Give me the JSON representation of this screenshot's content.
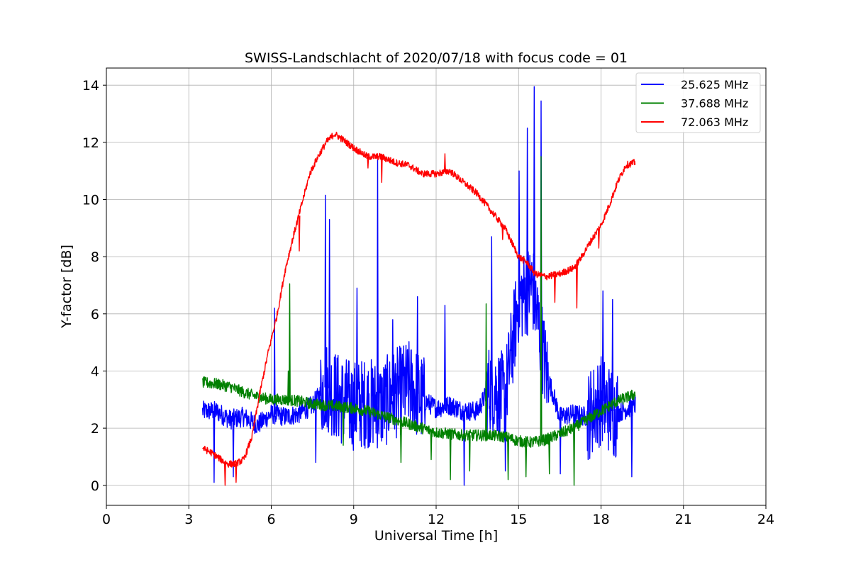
{
  "chart_data": {
    "type": "line",
    "title": "SWISS-Landschlacht of 2020/07/18 with focus code = 01",
    "xlabel": "Universal Time [h]",
    "ylabel": "Y-factor [dB]",
    "xlim": [
      0,
      24
    ],
    "ylim": [
      -0.7,
      14.6
    ],
    "xticks": [
      0,
      3,
      6,
      9,
      12,
      15,
      18,
      21,
      24
    ],
    "yticks": [
      0,
      2,
      4,
      6,
      8,
      10,
      12,
      14
    ],
    "grid": true,
    "legend_position": "top-right",
    "series": [
      {
        "name": "25.625 MHz",
        "color": "#0000ff",
        "x": [
          3.5,
          4.0,
          4.5,
          5.0,
          5.5,
          6.0,
          6.5,
          7.0,
          7.5,
          8.0,
          8.5,
          9.0,
          9.5,
          10.0,
          10.5,
          11.0,
          11.5,
          12.0,
          12.5,
          13.0,
          13.5,
          14.0,
          14.5,
          15.0,
          15.5,
          16.0,
          16.5,
          17.0,
          17.5,
          18.0,
          18.5,
          19.0,
          19.25
        ],
        "y": [
          2.6,
          2.6,
          2.3,
          2.4,
          2.1,
          2.5,
          2.4,
          2.5,
          2.8,
          3.5,
          3.0,
          2.8,
          2.9,
          2.8,
          3.2,
          3.5,
          3.0,
          2.7,
          2.8,
          2.6,
          2.6,
          3.5,
          3.0,
          6.5,
          7.0,
          4.0,
          2.4,
          2.5,
          2.4,
          3.0,
          2.5,
          2.7,
          2.8
        ],
        "spikes": [
          [
            3.9,
            0.1
          ],
          [
            4.6,
            0.3
          ],
          [
            6.1,
            6.2
          ],
          [
            7.6,
            0.8
          ],
          [
            7.95,
            10.15
          ],
          [
            8.1,
            9.3
          ],
          [
            9.1,
            6.9
          ],
          [
            9.85,
            11.4
          ],
          [
            10.4,
            5.8
          ],
          [
            11.3,
            6.6
          ],
          [
            12.3,
            6.3
          ],
          [
            13.0,
            0.0
          ],
          [
            14.0,
            8.7
          ],
          [
            14.5,
            0.5
          ],
          [
            15.0,
            11.0
          ],
          [
            15.3,
            12.5
          ],
          [
            15.55,
            13.95
          ],
          [
            15.8,
            13.45
          ],
          [
            16.5,
            0.4
          ],
          [
            17.0,
            0.8
          ],
          [
            18.05,
            6.8
          ],
          [
            18.4,
            6.5
          ],
          [
            19.1,
            0.3
          ]
        ]
      },
      {
        "name": "37.688 MHz",
        "color": "#008000",
        "x": [
          3.5,
          4.0,
          4.5,
          5.0,
          5.5,
          6.0,
          6.5,
          7.0,
          7.5,
          8.0,
          8.5,
          9.0,
          9.5,
          10.0,
          10.5,
          11.0,
          11.5,
          12.0,
          12.5,
          13.0,
          13.5,
          14.0,
          14.5,
          15.0,
          15.5,
          16.0,
          16.5,
          17.0,
          17.5,
          18.0,
          18.5,
          19.0,
          19.25
        ],
        "y": [
          3.6,
          3.55,
          3.45,
          3.25,
          3.1,
          3.0,
          3.0,
          2.95,
          2.85,
          2.8,
          2.75,
          2.7,
          2.6,
          2.45,
          2.3,
          2.15,
          2.0,
          1.85,
          1.8,
          1.75,
          1.75,
          1.75,
          1.7,
          1.55,
          1.5,
          1.6,
          1.8,
          2.0,
          2.3,
          2.6,
          2.9,
          3.1,
          3.2
        ],
        "spikes": [
          [
            6.65,
            7.05
          ],
          [
            6.6,
            4.0
          ],
          [
            8.6,
            1.4
          ],
          [
            10.7,
            0.8
          ],
          [
            11.8,
            0.9
          ],
          [
            12.5,
            0.2
          ],
          [
            13.2,
            0.5
          ],
          [
            13.8,
            6.35
          ],
          [
            14.6,
            0.2
          ],
          [
            15.25,
            0.3
          ],
          [
            15.8,
            11.5
          ],
          [
            16.1,
            0.4
          ],
          [
            17.0,
            0.0
          ]
        ]
      },
      {
        "name": "72.063 MHz",
        "color": "#ff0000",
        "x": [
          3.5,
          3.8,
          4.1,
          4.4,
          4.7,
          5.0,
          5.3,
          5.6,
          5.9,
          6.2,
          6.5,
          6.8,
          7.1,
          7.4,
          7.7,
          8.0,
          8.3,
          8.6,
          9.0,
          9.5,
          10.0,
          10.5,
          11.0,
          11.5,
          12.0,
          12.5,
          13.0,
          13.5,
          14.0,
          14.5,
          15.0,
          15.3,
          15.6,
          16.0,
          16.5,
          17.0,
          17.3,
          17.6,
          18.0,
          18.3,
          18.6,
          18.9,
          19.25
        ],
        "y": [
          1.3,
          1.15,
          0.95,
          0.75,
          0.75,
          0.9,
          1.7,
          3.3,
          4.7,
          5.9,
          7.5,
          8.7,
          9.8,
          10.9,
          11.5,
          12.0,
          12.3,
          12.1,
          11.8,
          11.5,
          11.5,
          11.3,
          11.2,
          10.9,
          10.9,
          11.0,
          10.6,
          10.2,
          9.6,
          9.0,
          8.0,
          7.8,
          7.4,
          7.3,
          7.4,
          7.6,
          8.0,
          8.5,
          9.1,
          9.8,
          10.6,
          11.2,
          11.3
        ],
        "spikes": [
          [
            4.3,
            0.0
          ],
          [
            4.7,
            0.1
          ],
          [
            7.0,
            8.2
          ],
          [
            9.5,
            11.1
          ],
          [
            10.0,
            10.6
          ],
          [
            12.3,
            11.6
          ],
          [
            14.4,
            8.6
          ],
          [
            16.3,
            6.4
          ],
          [
            17.1,
            6.2
          ],
          [
            17.9,
            8.3
          ]
        ]
      }
    ]
  }
}
